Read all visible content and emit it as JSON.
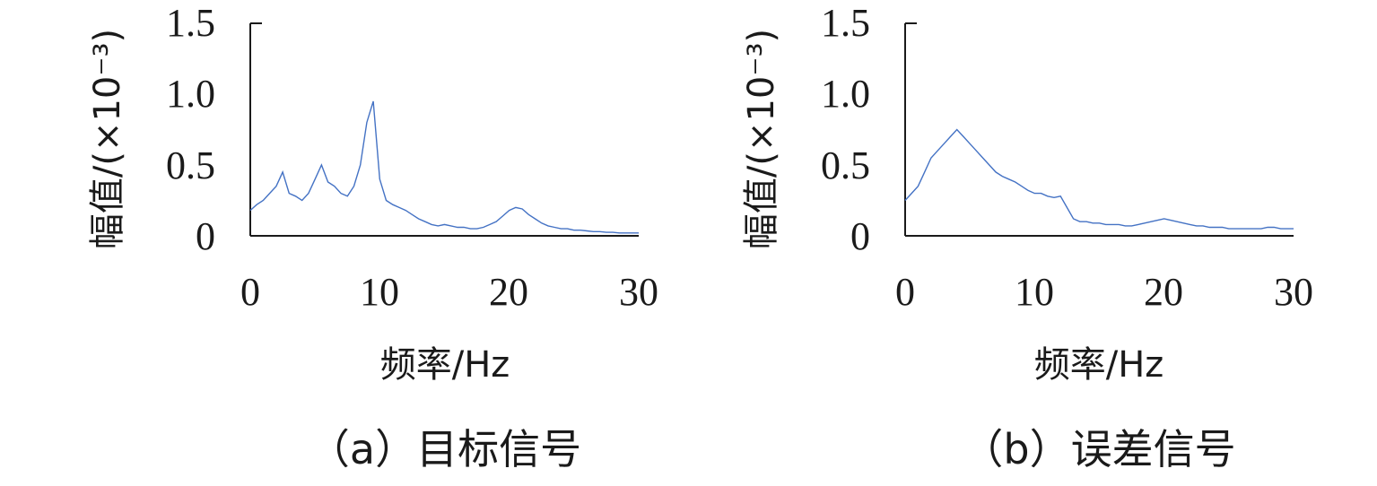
{
  "chart_data": [
    {
      "type": "line",
      "panel_caption": "（a）目标信号",
      "xlabel": "频率/Hz",
      "ylabel": "幅值/(×10⁻³)",
      "xlim": [
        0,
        30
      ],
      "ylim": [
        0,
        1.5
      ],
      "xticks": [
        "0",
        "10",
        "20",
        "30"
      ],
      "yticks": [
        "0",
        "0.5",
        "1.0",
        "1.5"
      ],
      "grid": false,
      "line_color": "#4472c4",
      "series": [
        {
          "x": [
            0,
            0.5,
            1,
            1.5,
            2,
            2.5,
            3,
            3.5,
            4,
            4.5,
            5,
            5.5,
            6,
            6.5,
            7,
            7.5,
            8,
            8.5,
            9,
            9.5,
            10,
            10.5,
            11,
            11.5,
            12,
            12.5,
            13,
            13.5,
            14,
            14.5,
            15,
            15.5,
            16,
            16.5,
            17,
            17.5,
            18,
            18.5,
            19,
            19.5,
            20,
            20.5,
            21,
            21.5,
            22,
            22.5,
            23,
            23.5,
            24,
            24.5,
            25,
            25.5,
            26,
            26.5,
            27,
            27.5,
            28,
            28.5,
            29,
            29.5,
            30
          ],
          "values": [
            0.18,
            0.22,
            0.25,
            0.3,
            0.35,
            0.45,
            0.3,
            0.28,
            0.25,
            0.3,
            0.4,
            0.5,
            0.38,
            0.35,
            0.3,
            0.28,
            0.35,
            0.5,
            0.8,
            0.95,
            0.4,
            0.25,
            0.22,
            0.2,
            0.18,
            0.15,
            0.12,
            0.1,
            0.08,
            0.07,
            0.08,
            0.07,
            0.06,
            0.06,
            0.05,
            0.05,
            0.06,
            0.08,
            0.1,
            0.14,
            0.18,
            0.2,
            0.19,
            0.15,
            0.12,
            0.09,
            0.07,
            0.06,
            0.05,
            0.05,
            0.04,
            0.04,
            0.035,
            0.03,
            0.03,
            0.025,
            0.025,
            0.02,
            0.02,
            0.02,
            0.02
          ]
        }
      ]
    },
    {
      "type": "line",
      "panel_caption": "（b）误差信号",
      "xlabel": "频率/Hz",
      "ylabel": "幅值/(×10⁻³)",
      "xlim": [
        0,
        30
      ],
      "ylim": [
        0,
        1.5
      ],
      "xticks": [
        "0",
        "10",
        "20",
        "30"
      ],
      "yticks": [
        "0",
        "0.5",
        "1.0",
        "1.5"
      ],
      "grid": false,
      "line_color": "#4472c4",
      "series": [
        {
          "x": [
            0,
            0.5,
            1,
            1.5,
            2,
            2.5,
            3,
            3.5,
            4,
            4.5,
            5,
            5.5,
            6,
            6.5,
            7,
            7.5,
            8,
            8.5,
            9,
            9.5,
            10,
            10.5,
            11,
            11.5,
            12,
            12.5,
            13,
            13.5,
            14,
            14.5,
            15,
            15.5,
            16,
            16.5,
            17,
            17.5,
            18,
            18.5,
            19,
            19.5,
            20,
            20.5,
            21,
            21.5,
            22,
            22.5,
            23,
            23.5,
            24,
            24.5,
            25,
            25.5,
            26,
            26.5,
            27,
            27.5,
            28,
            28.5,
            29,
            29.5,
            30
          ],
          "values": [
            0.25,
            0.3,
            0.35,
            0.45,
            0.55,
            0.6,
            0.65,
            0.7,
            0.75,
            0.7,
            0.65,
            0.6,
            0.55,
            0.5,
            0.45,
            0.42,
            0.4,
            0.38,
            0.35,
            0.32,
            0.3,
            0.3,
            0.28,
            0.27,
            0.28,
            0.2,
            0.12,
            0.1,
            0.1,
            0.09,
            0.09,
            0.08,
            0.08,
            0.08,
            0.07,
            0.07,
            0.08,
            0.09,
            0.1,
            0.11,
            0.12,
            0.11,
            0.1,
            0.09,
            0.08,
            0.07,
            0.07,
            0.06,
            0.06,
            0.06,
            0.05,
            0.05,
            0.05,
            0.05,
            0.05,
            0.05,
            0.06,
            0.06,
            0.05,
            0.05,
            0.05
          ]
        }
      ]
    }
  ]
}
